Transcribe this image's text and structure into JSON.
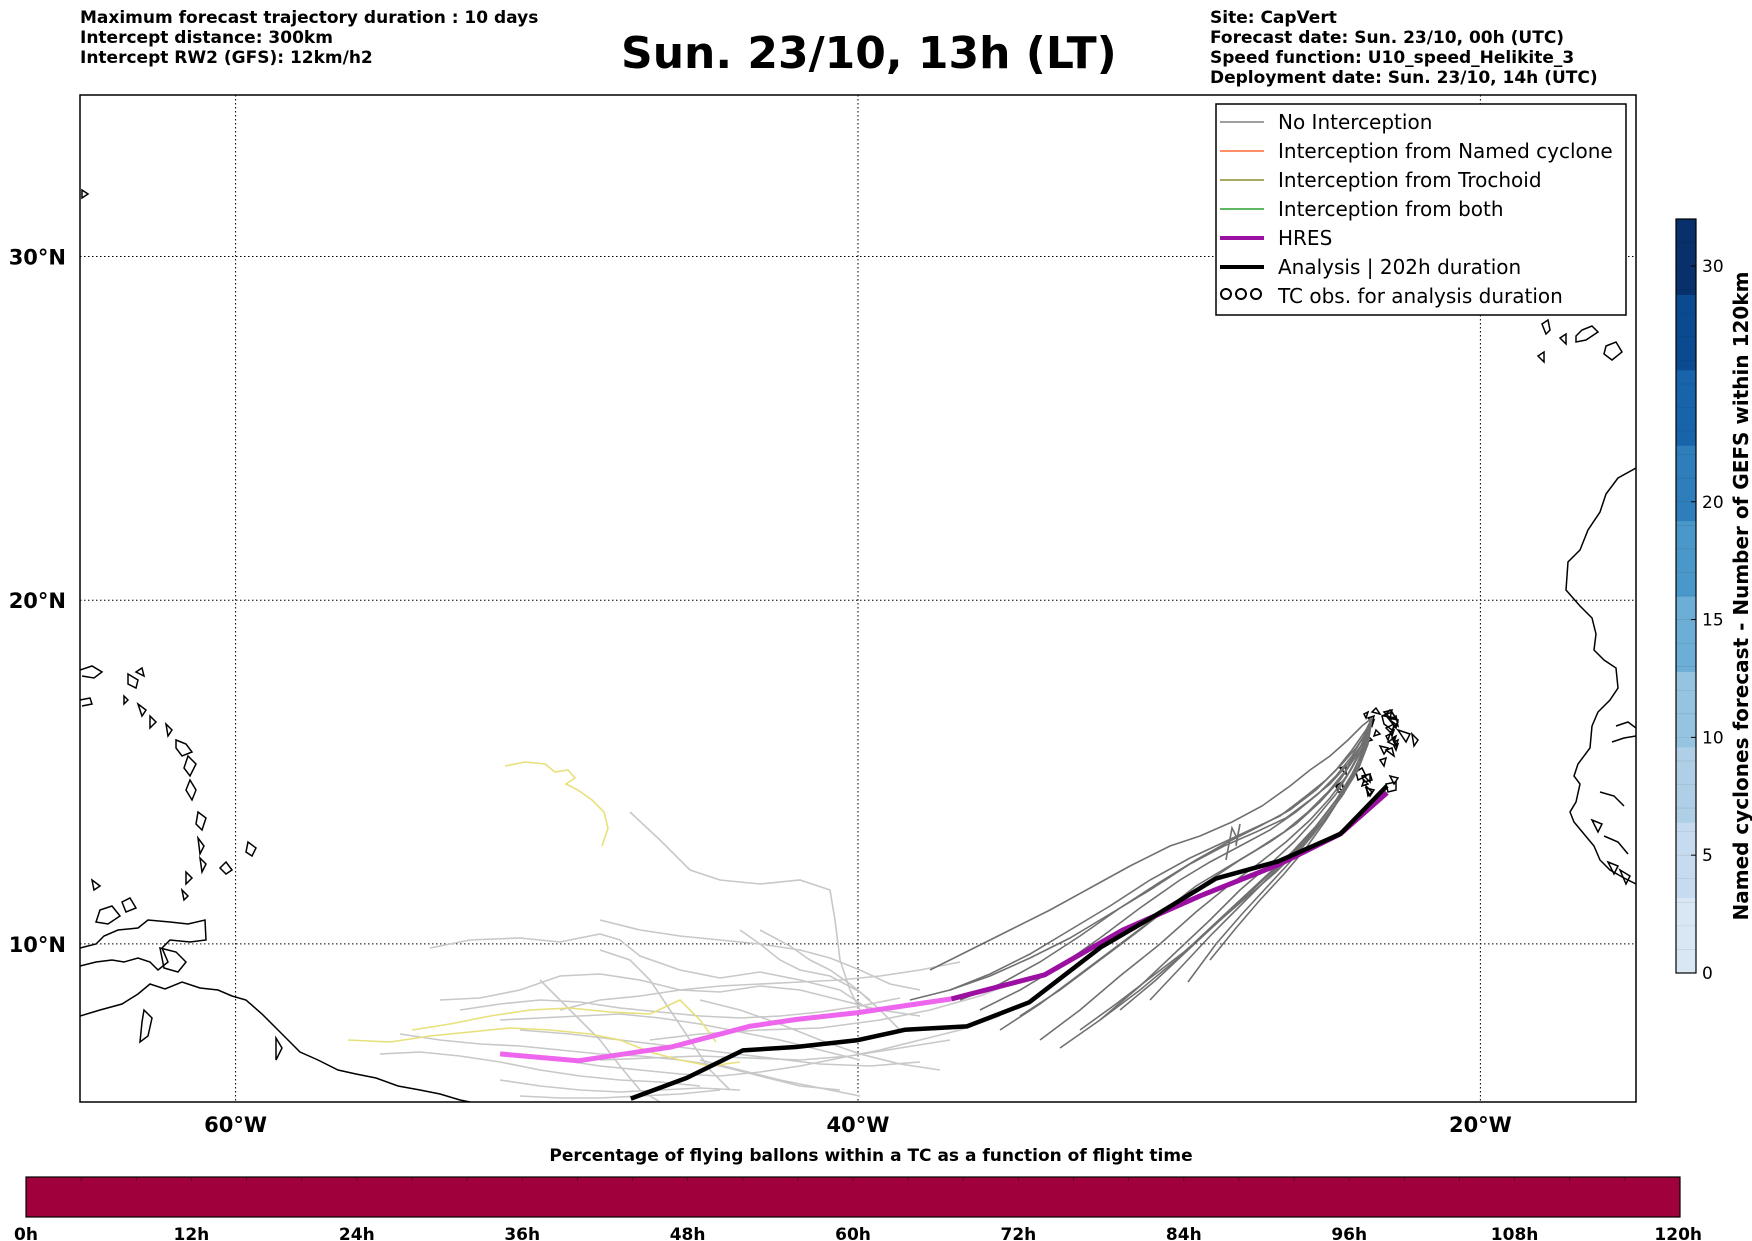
{
  "header": {
    "left": [
      "Maximum forecast trajectory duration : 10 days",
      "Intercept distance: 300km",
      "Intercept RW2 (GFS):  12km/h2"
    ],
    "title": "Sun. 23/10, 13h (LT)",
    "right": [
      "Site: CapVert",
      "Forecast date: Sun. 23/10, 00h (UTC)",
      "Speed function: U10_speed_Helikite_3",
      "Deployment date: Sun. 23/10, 14h (UTC)"
    ]
  },
  "map": {
    "lon_range": [
      -65,
      -15
    ],
    "lat_range": [
      5.4,
      34.7
    ],
    "lon_ticks": [
      {
        "value": -60,
        "label": "60°W"
      },
      {
        "value": -40,
        "label": "40°W"
      },
      {
        "value": -20,
        "label": "20°W"
      }
    ],
    "lat_ticks": [
      {
        "value": 30,
        "label": "30°N"
      },
      {
        "value": 20,
        "label": "20°N"
      },
      {
        "value": 10,
        "label": "10°N"
      }
    ],
    "grid": "dotted",
    "legend": {
      "placement": "top-right",
      "entries": [
        {
          "label": "No Interception",
          "color": "#808080",
          "style": "thin"
        },
        {
          "label": "Interception from Named cyclone",
          "color": "#ff6a33",
          "style": "thin"
        },
        {
          "label": "Interception from Trochoid",
          "color": "#8b8b28",
          "style": "thin"
        },
        {
          "label": "Interception from both",
          "color": "#2ca02c",
          "style": "thin"
        },
        {
          "label": "HRES",
          "color": "#9b10a0",
          "style": "thick"
        },
        {
          "label": "Analysis | 202h duration",
          "color": "#000000",
          "style": "thick"
        },
        {
          "label": "TC obs. for analysis duration",
          "color": "#000000",
          "style": "symbol"
        }
      ]
    },
    "tracks": {
      "hres": [
        [
          -51.5,
          6.8
        ],
        [
          -49,
          6.6
        ],
        [
          -46,
          7.0
        ],
        [
          -43.5,
          7.6
        ],
        [
          -42,
          7.8
        ],
        [
          -40,
          8.0
        ],
        [
          -37,
          8.4
        ],
        [
          -34,
          9.1
        ],
        [
          -31.5,
          10.4
        ],
        [
          -29,
          11.4
        ],
        [
          -26.5,
          12.3
        ],
        [
          -24.5,
          13.2
        ],
        [
          -23.0,
          14.4
        ]
      ],
      "analysis": [
        [
          -47.3,
          5.5
        ],
        [
          -45.5,
          6.1
        ],
        [
          -43.7,
          6.9
        ],
        [
          -42,
          7.0
        ],
        [
          -40,
          7.2
        ],
        [
          -38.5,
          7.5
        ],
        [
          -36.5,
          7.6
        ],
        [
          -34.5,
          8.3
        ],
        [
          -32.2,
          9.9
        ],
        [
          -30.5,
          10.8
        ],
        [
          -28.5,
          11.9
        ],
        [
          -26.5,
          12.4
        ],
        [
          -24.5,
          13.2
        ],
        [
          -23.0,
          14.6
        ]
      ],
      "departure": [
        -23.0,
        14.6
      ]
    }
  },
  "colorbar_vertical": {
    "label": "Named cyclones forecast - Number of GEFS within 120km",
    "ticks": [
      0,
      5,
      10,
      15,
      20,
      30
    ],
    "range": [
      0,
      32
    ],
    "colors": [
      "#d9e7f5",
      "#c6dbef",
      "#aecfe6",
      "#94c4df",
      "#6caed6",
      "#4a97c9",
      "#2e7ebc",
      "#1764ab",
      "#0a4a90",
      "#08306b"
    ]
  },
  "colorbar_horizontal": {
    "title": "Percentage of flying ballons within a TC as a function of flight time",
    "ticks": [
      "0h",
      "12h",
      "24h",
      "36h",
      "48h",
      "60h",
      "72h",
      "84h",
      "96h",
      "108h",
      "120h"
    ],
    "fill_color": "#a0003c"
  }
}
